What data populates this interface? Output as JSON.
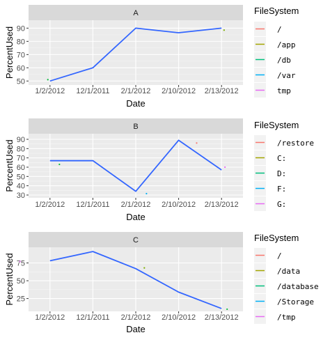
{
  "chart_data": [
    {
      "type": "line",
      "facet": "A",
      "xlabel": "Date",
      "ylabel": "PercentUsed",
      "categories": [
        "1/2/2012",
        "12/1/2011",
        "2/1/2012",
        "2/10/2012",
        "2/13/2012"
      ],
      "ylim": [
        47,
        96
      ],
      "yticks": [
        50,
        60,
        70,
        80,
        90
      ],
      "grid": true,
      "series": [
        {
          "type": "line",
          "color": "#3366ff",
          "values": [
            50,
            60,
            90,
            86.5,
            90
          ]
        }
      ],
      "points": [
        {
          "x": 0.95,
          "y": 51,
          "color": "#00ba38"
        },
        {
          "x": 5.06,
          "y": 88.5,
          "color": "#7cae00"
        }
      ],
      "legend": {
        "title": "FileSystem",
        "position": "right",
        "items": [
          {
            "label": "/",
            "color": "#f8766d"
          },
          {
            "label": "/app",
            "color": "#a3a500"
          },
          {
            "label": "/db",
            "color": "#00bf7d"
          },
          {
            "label": "/var",
            "color": "#00b0f6"
          },
          {
            "label": "tmp",
            "color": "#e76bf3"
          }
        ]
      }
    },
    {
      "type": "line",
      "facet": "B",
      "xlabel": "Date",
      "ylabel": "PercentUsed",
      "categories": [
        "1/2/2012",
        "12/1/2011",
        "2/1/2012",
        "2/10/2012",
        "2/13/2012"
      ],
      "ylim": [
        27,
        96
      ],
      "yticks": [
        30,
        40,
        50,
        60,
        70,
        80,
        90
      ],
      "grid": true,
      "series": [
        {
          "type": "line",
          "color": "#3366ff",
          "values": [
            67,
            67,
            34,
            89,
            57
          ]
        }
      ],
      "points": [
        {
          "x": 1.22,
          "y": 63,
          "color": "#00ba38"
        },
        {
          "x": 3.25,
          "y": 31.5,
          "color": "#00b0f6"
        },
        {
          "x": 4.42,
          "y": 86,
          "color": "#f8766d"
        },
        {
          "x": 5.08,
          "y": 60,
          "color": "#e76bf3"
        }
      ],
      "legend": {
        "title": "FileSystem",
        "position": "right",
        "items": [
          {
            "label": "/restore",
            "color": "#f8766d"
          },
          {
            "label": "C:",
            "color": "#a3a500"
          },
          {
            "label": "D:",
            "color": "#00bf7d"
          },
          {
            "label": "F:",
            "color": "#00b0f6"
          },
          {
            "label": "G:",
            "color": "#e76bf3"
          }
        ]
      }
    },
    {
      "type": "line",
      "facet": "C",
      "xlabel": "Date",
      "ylabel": "PercentUsed",
      "categories": [
        "1/2/2012",
        "12/1/2011",
        "2/1/2012",
        "2/10/2012",
        "2/13/2012"
      ],
      "ylim": [
        7,
        97
      ],
      "yticks": [
        25,
        50,
        75
      ],
      "grid": true,
      "series": [
        {
          "type": "line",
          "color": "#3366ff",
          "values": [
            78,
            91,
            67,
            34,
            11
          ]
        }
      ],
      "points": [
        {
          "x": 0.3,
          "y": 77,
          "color": "#e76bf3"
        },
        {
          "x": 3.2,
          "y": 68,
          "color": "#7cae00"
        },
        {
          "x": 5.13,
          "y": 10,
          "color": "#00ba38"
        }
      ],
      "legend": {
        "title": "FileSystem",
        "position": "right",
        "items": [
          {
            "label": "/",
            "color": "#f8766d"
          },
          {
            "label": "/data",
            "color": "#a3a500"
          },
          {
            "label": "/database",
            "color": "#00bf7d"
          },
          {
            "label": "/Storage",
            "color": "#00b0f6"
          },
          {
            "label": "/tmp",
            "color": "#e76bf3"
          }
        ]
      }
    }
  ]
}
